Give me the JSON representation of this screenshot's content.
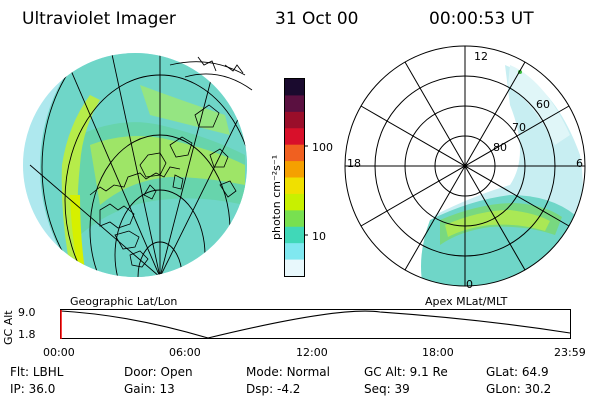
{
  "header": {
    "instrument": "Ultraviolet Imager",
    "date": "31 Oct 00",
    "time": "00:00:53 UT"
  },
  "image_panels": {
    "left_label": "Geographic Lat/Lon",
    "right_label": "Apex MLat/MLT"
  },
  "colorbar": {
    "unit_label": "photon cm⁻²s⁻¹",
    "tick_labels": [
      "100",
      "10"
    ],
    "colors": [
      "#1a0a2e",
      "#5a1040",
      "#9a0e2a",
      "#d8102a",
      "#f06020",
      "#f5a000",
      "#f0e000",
      "#c8f000",
      "#78e050",
      "#40d8b8",
      "#80e8f0",
      "#e8f8fc"
    ]
  },
  "polar": {
    "mlt_labels": [
      "12",
      "18",
      "6",
      "0"
    ],
    "mlat_labels": [
      "60",
      "70",
      "80"
    ]
  },
  "altitude_plot": {
    "axis_label": "GC Alt",
    "y_ticks": [
      "9.0",
      "1.8"
    ],
    "x_ticks": [
      "00:00",
      "06:00",
      "12:00",
      "18:00",
      "23:59"
    ]
  },
  "status": {
    "row1": [
      {
        "key": "Flt:",
        "value": "LBHL"
      },
      {
        "key": "Door:",
        "value": "Open"
      },
      {
        "key": "Mode:",
        "value": "Normal"
      },
      {
        "key": "GC Alt:",
        "value": "9.1 Re"
      },
      {
        "key": "GLat:",
        "value": "64.9"
      }
    ],
    "row2": [
      {
        "key": "IP:",
        "value": "36.0"
      },
      {
        "key": "Gain:",
        "value": "13"
      },
      {
        "key": "Dsp:",
        "value": "-4.2"
      },
      {
        "key": "Seq:",
        "value": "39"
      },
      {
        "key": "GLon:",
        "value": "30.2"
      }
    ]
  }
}
